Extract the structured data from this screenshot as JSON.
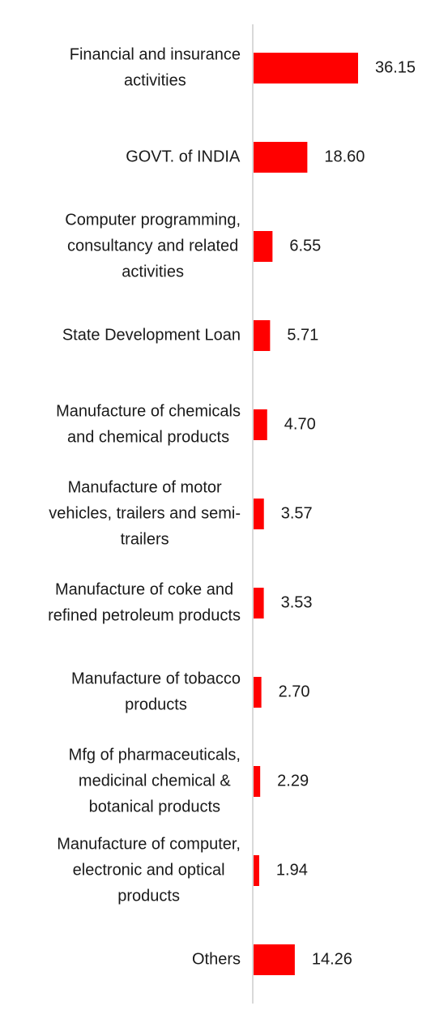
{
  "chart_data": {
    "type": "bar",
    "orientation": "horizontal",
    "categories": [
      [
        "Financial and insurance",
        "activities"
      ],
      [
        "GOVT. of INDIA"
      ],
      [
        "Computer programming,",
        "consultancy and related",
        "activities"
      ],
      [
        "State Development Loan"
      ],
      [
        "Manufacture of chemicals",
        "and chemical products"
      ],
      [
        "Manufacture of motor",
        "vehicles, trailers and semi-",
        "trailers"
      ],
      [
        "Manufacture of coke and",
        "refined petroleum products"
      ],
      [
        "Manufacture of tobacco",
        "products"
      ],
      [
        "Mfg of pharmaceuticals,",
        "medicinal chemical &",
        "botanical products"
      ],
      [
        "Manufacture of computer,",
        "electronic and optical",
        "products"
      ],
      [
        "Others"
      ]
    ],
    "values": [
      36.15,
      18.6,
      6.55,
      5.71,
      4.7,
      3.57,
      3.53,
      2.7,
      2.29,
      1.94,
      14.26
    ],
    "value_labels": [
      "36.15",
      "18.60",
      "6.55",
      "5.71",
      "4.70",
      "3.57",
      "3.53",
      "2.70",
      "2.29",
      "1.94",
      "14.26"
    ],
    "xlim": [
      0,
      40
    ],
    "grid": false,
    "legend": "none",
    "colors": {
      "bar": "#ff0000",
      "axis": "#d9d9d9",
      "text": "#1a1a1a"
    }
  }
}
